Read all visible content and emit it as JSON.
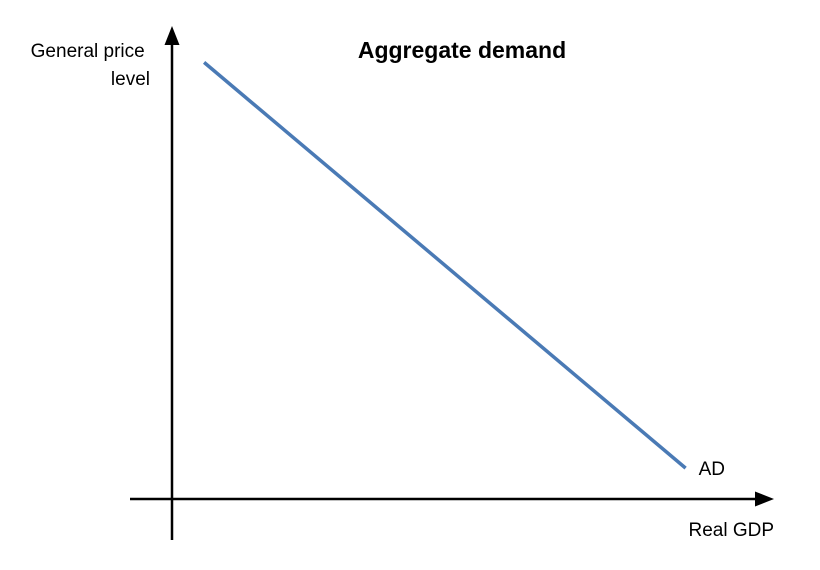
{
  "chart_data": {
    "type": "line",
    "title": "Aggregate demand",
    "ylabel_lines": [
      "General price",
      "level"
    ],
    "xlabel": "Real GDP",
    "xlim": [
      0,
      1
    ],
    "ylim": [
      0,
      1
    ],
    "ticks": "none",
    "grid": false,
    "series": [
      {
        "name": "AD",
        "color": "#4a7ab5",
        "points": [
          {
            "x": 0.06,
            "y": 0.99
          },
          {
            "x": 0.96,
            "y": 0.07
          }
        ]
      }
    ]
  }
}
